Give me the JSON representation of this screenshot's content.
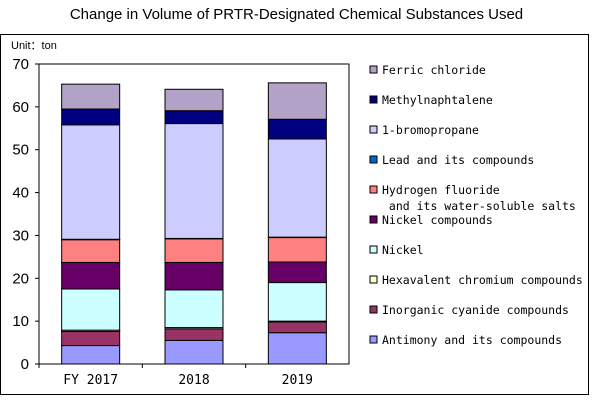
{
  "title": "Change in Volume of PRTR-Designated Chemical Substances Used",
  "chart_data": {
    "type": "bar",
    "stacked": true,
    "title": "Change in Volume of PRTR-Designated Chemical Substances Used",
    "unit_label": "Unit：ton",
    "categories": [
      "FY 2017",
      "2018",
      "2019"
    ],
    "ylim": [
      0,
      70
    ],
    "yticks": [
      0,
      10,
      20,
      30,
      40,
      50,
      60,
      70
    ],
    "grid": false,
    "legend_position": "right",
    "series": [
      {
        "name": "Antimony and its compounds",
        "color": "#9999ff",
        "values": [
          4.3,
          5.5,
          7.3
        ]
      },
      {
        "name": "Inorganic cyanide compounds",
        "color": "#993366",
        "values": [
          3.3,
          2.7,
          2.5
        ]
      },
      {
        "name": "Hexavalent chromium compounds",
        "color": "#ffffcc",
        "values": [
          0.3,
          0.3,
          0.2
        ]
      },
      {
        "name": "Nickel",
        "color": "#ccffff",
        "values": [
          9.6,
          8.8,
          9.0
        ]
      },
      {
        "name": "Nickel compounds",
        "color": "#660066",
        "values": [
          6.2,
          6.4,
          4.8
        ]
      },
      {
        "name": "Hydrogen fluoride\n and its water-soluble salts",
        "color": "#ff8080",
        "values": [
          5.3,
          5.5,
          5.7
        ]
      },
      {
        "name": "Lead and its compounds",
        "color": "#0066cc",
        "values": [
          0.1,
          0.1,
          0.1
        ]
      },
      {
        "name": "1-bromopropane",
        "color": "#ccccff",
        "values": [
          26.7,
          26.8,
          22.9
        ]
      },
      {
        "name": "Methylnaphtalene",
        "color": "#000080",
        "values": [
          3.7,
          3.0,
          4.6
        ]
      },
      {
        "name": "Ferric chloride",
        "color": "#b3a2c7",
        "values": [
          5.8,
          5.0,
          8.5
        ]
      }
    ]
  }
}
